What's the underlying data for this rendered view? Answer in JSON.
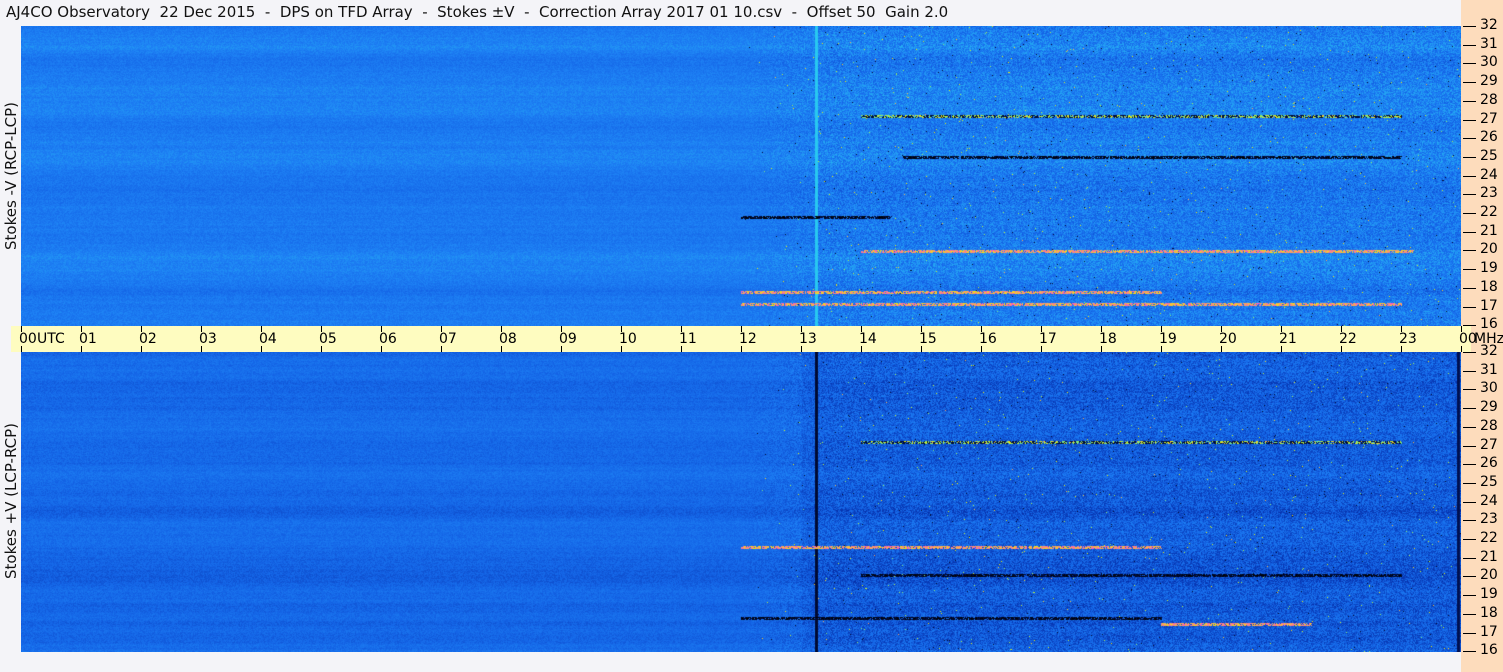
{
  "title": "AJ4CO Observatory  22 Dec 2015  -  DPS on TFD Array  -  Stokes ±V  -  Correction Array 2017 01 10.csv  -  Offset 50  Gain 2.0",
  "colors": {
    "title_bg": "#f4f4f8",
    "freq_axis_bg": "#fddcbc",
    "time_axis_bg": "#fefcc0",
    "spectrum_base": "#1a7af0"
  },
  "chart_data": [
    {
      "type": "heatmap",
      "panel": "top",
      "ylabel": "Stokes -V (RCP-LCP)",
      "xlim": [
        0,
        24
      ],
      "ylim": [
        16,
        32
      ],
      "x_unit": "UTC",
      "y_unit": "MHz",
      "x_ticks": [
        "00",
        "01",
        "02",
        "03",
        "04",
        "05",
        "06",
        "07",
        "08",
        "09",
        "10",
        "11",
        "12",
        "13",
        "14",
        "15",
        "16",
        "17",
        "18",
        "19",
        "20",
        "21",
        "22",
        "23",
        "00"
      ],
      "y_ticks": [
        "32",
        "31",
        "30",
        "29",
        "28",
        "27",
        "26",
        "25",
        "24",
        "23",
        "22",
        "21",
        "20",
        "19",
        "18",
        "17",
        "16"
      ],
      "features": [
        {
          "freq": 25,
          "start": 14.7,
          "end": 23.0,
          "level": "low"
        },
        {
          "freq": 20,
          "start": 14.0,
          "end": 23.2,
          "level": "high"
        },
        {
          "freq": 17.8,
          "start": 12.0,
          "end": 19.0,
          "level": "high"
        },
        {
          "freq": 17.2,
          "start": 12.0,
          "end": 23.0,
          "level": "high"
        },
        {
          "freq": 27.2,
          "start": 14.0,
          "end": 23.0,
          "level": "mixed"
        },
        {
          "freq": 21.8,
          "start": 12.0,
          "end": 14.5,
          "level": "low"
        }
      ]
    },
    {
      "type": "heatmap",
      "panel": "bottom",
      "ylabel": "Stokes +V (LCP-RCP)",
      "xlim": [
        0,
        24
      ],
      "ylim": [
        16,
        32
      ],
      "x_unit": "UTC",
      "y_unit": "MHz",
      "x_ticks": [
        "00",
        "01",
        "02",
        "03",
        "04",
        "05",
        "06",
        "07",
        "08",
        "09",
        "10",
        "11",
        "12",
        "13",
        "14",
        "15",
        "16",
        "17",
        "18",
        "19",
        "20",
        "21",
        "22",
        "23",
        "00"
      ],
      "y_ticks": [
        "32",
        "31",
        "30",
        "29",
        "28",
        "27",
        "26",
        "25",
        "24",
        "23",
        "22",
        "21",
        "20",
        "19",
        "18",
        "17",
        "16"
      ],
      "features": [
        {
          "freq": 21.6,
          "start": 12.0,
          "end": 19.0,
          "level": "high"
        },
        {
          "freq": 20.1,
          "start": 14.0,
          "end": 23.0,
          "level": "low"
        },
        {
          "freq": 17.8,
          "start": 12.0,
          "end": 19.0,
          "level": "low"
        },
        {
          "freq": 17.5,
          "start": 19.0,
          "end": 21.5,
          "level": "high"
        },
        {
          "freq": 27.2,
          "start": 14.0,
          "end": 23.0,
          "level": "mixed"
        }
      ]
    }
  ],
  "time_axis": {
    "utc_label": "UTC",
    "mhz_label": "MHz"
  }
}
